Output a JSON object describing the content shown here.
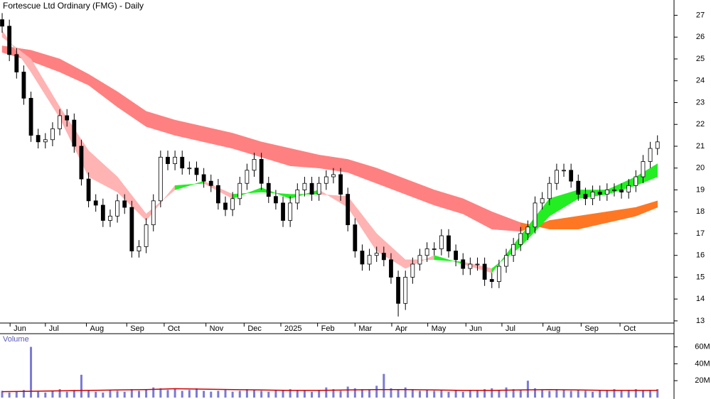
{
  "chart_data": {
    "type": "candlestick",
    "title": "Fortescue Ltd Ordinary (FMG) - Daily",
    "x": [
      0,
      1,
      2,
      3,
      4,
      5,
      6,
      7,
      8,
      9,
      10,
      11,
      12,
      13,
      14,
      15,
      16,
      17,
      18,
      19,
      20,
      21,
      22,
      23,
      24,
      25,
      26,
      27,
      28,
      29,
      30,
      31,
      32,
      33,
      34,
      35,
      36,
      37,
      38,
      39,
      40,
      41,
      42,
      43,
      44,
      45,
      46,
      47,
      48,
      49,
      50,
      51,
      52,
      53,
      54,
      55,
      56,
      57,
      58,
      59,
      60,
      61,
      62,
      63,
      64,
      65,
      66,
      67,
      68,
      69,
      70,
      71,
      72,
      73,
      74,
      75,
      76,
      77,
      78,
      79,
      80,
      81,
      82,
      83,
      84,
      85,
      86,
      87,
      88,
      89,
      90,
      91
    ],
    "open": [
      26.8,
      26.5,
      25.2,
      24.4,
      23.2,
      21.5,
      21.2,
      21.3,
      21.8,
      22.4,
      22.2,
      21.0,
      19.5,
      18.5,
      18.3,
      17.6,
      17.8,
      18.5,
      18.2,
      16.2,
      16.4,
      17.4,
      18.5,
      20.5,
      20.2,
      20.5,
      20.0,
      20.0,
      19.7,
      19.4,
      19.2,
      18.4,
      18.1,
      18.6,
      19.3,
      19.9,
      20.4,
      19.3,
      18.7,
      18.4,
      17.6,
      18.4,
      19.0,
      19.3,
      18.8,
      19.3,
      19.6,
      19.7,
      18.8,
      17.4,
      16.2,
      15.6,
      16.0,
      16.1,
      15.8,
      15.0,
      13.8,
      15.0,
      15.6,
      16.0,
      16.3,
      16.3,
      16.9,
      16.2,
      15.8,
      15.4,
      15.6,
      15.6,
      14.9,
      14.8,
      15.5,
      16.0,
      16.5,
      17.0,
      17.3,
      18.4,
      18.6,
      19.3,
      19.9,
      19.9,
      19.4,
      18.8,
      18.6,
      18.9,
      18.8,
      19.0,
      19.0,
      18.9,
      19.2,
      19.6,
      20.3,
      20.9
    ],
    "high": [
      27.1,
      26.8,
      25.5,
      24.7,
      23.5,
      21.8,
      21.6,
      22.1,
      22.7,
      22.7,
      22.5,
      21.3,
      19.8,
      18.8,
      18.6,
      18.1,
      18.8,
      18.8,
      18.5,
      16.7,
      17.7,
      18.8,
      20.8,
      20.8,
      20.8,
      20.8,
      20.3,
      20.3,
      20.0,
      19.7,
      19.5,
      18.7,
      18.9,
      19.6,
      20.2,
      20.7,
      20.7,
      19.6,
      19.0,
      18.7,
      18.7,
      19.3,
      19.6,
      19.6,
      19.6,
      19.9,
      20.0,
      20.0,
      19.1,
      17.7,
      16.5,
      16.3,
      16.4,
      16.4,
      16.1,
      15.3,
      15.3,
      15.9,
      16.3,
      16.6,
      16.6,
      17.2,
      17.2,
      16.5,
      16.1,
      15.9,
      15.9,
      15.9,
      15.2,
      15.8,
      16.3,
      16.8,
      17.3,
      17.6,
      18.7,
      18.9,
      19.6,
      20.2,
      20.2,
      20.2,
      19.7,
      19.1,
      19.2,
      19.2,
      19.3,
      19.3,
      19.3,
      19.5,
      19.9,
      20.6,
      21.2,
      21.5
    ],
    "low": [
      26.2,
      24.9,
      24.1,
      22.9,
      21.2,
      20.9,
      20.9,
      21.0,
      21.5,
      21.9,
      20.7,
      19.2,
      18.2,
      18.0,
      17.3,
      17.3,
      17.5,
      17.9,
      15.9,
      15.9,
      16.1,
      17.1,
      18.2,
      19.9,
      19.9,
      19.7,
      19.7,
      19.4,
      19.1,
      18.9,
      18.1,
      17.8,
      17.8,
      18.3,
      19.0,
      19.6,
      19.0,
      18.4,
      18.1,
      17.3,
      17.3,
      18.1,
      18.7,
      18.5,
      18.5,
      19.0,
      19.3,
      18.5,
      17.1,
      15.9,
      15.3,
      15.3,
      15.7,
      15.5,
      14.7,
      13.2,
      13.5,
      14.7,
      15.3,
      15.7,
      16.0,
      16.0,
      15.9,
      15.5,
      15.1,
      15.1,
      15.3,
      14.6,
      14.5,
      14.5,
      15.2,
      15.7,
      16.2,
      16.7,
      17.0,
      18.1,
      18.3,
      19.0,
      19.6,
      19.1,
      18.5,
      18.3,
      18.3,
      18.5,
      18.5,
      18.7,
      18.6,
      18.6,
      18.9,
      19.3,
      20.0,
      20.6
    ],
    "close": [
      26.5,
      25.2,
      24.4,
      23.2,
      21.5,
      21.2,
      21.3,
      21.8,
      22.4,
      22.2,
      21.0,
      19.5,
      18.5,
      18.3,
      17.6,
      17.8,
      18.5,
      18.2,
      16.2,
      16.4,
      17.4,
      18.5,
      20.5,
      20.2,
      20.5,
      20.0,
      20.0,
      19.7,
      19.4,
      19.2,
      18.4,
      18.1,
      18.6,
      19.3,
      19.9,
      20.4,
      19.3,
      18.7,
      18.4,
      17.6,
      18.4,
      19.0,
      19.3,
      18.8,
      19.3,
      19.6,
      19.7,
      18.8,
      17.4,
      16.2,
      15.6,
      16.0,
      16.1,
      15.8,
      15.0,
      13.8,
      15.0,
      15.6,
      16.0,
      16.3,
      16.3,
      16.9,
      16.2,
      15.8,
      15.4,
      15.6,
      15.6,
      14.9,
      14.8,
      15.5,
      16.0,
      16.5,
      17.0,
      17.3,
      18.4,
      18.6,
      19.3,
      19.9,
      19.9,
      19.4,
      18.8,
      18.6,
      18.9,
      18.8,
      19.0,
      19.0,
      18.9,
      19.2,
      19.6,
      20.3,
      20.9,
      21.2
    ],
    "up_color": "#ffffff",
    "down_color": "#000000",
    "xlim": [
      -0.3,
      93.3
    ],
    "ylim": [
      12.9,
      27.7
    ],
    "yticks": [
      13,
      14,
      15,
      16,
      17,
      18,
      19,
      20,
      21,
      22,
      23,
      24,
      25,
      26,
      27
    ],
    "xticks": [
      {
        "value": 1.1,
        "label": "Jun"
      },
      {
        "value": 6.0,
        "label": "Jul"
      },
      {
        "value": 11.7,
        "label": "Aug"
      },
      {
        "value": 17.3,
        "label": "Sep"
      },
      {
        "value": 22.5,
        "label": "Oct"
      },
      {
        "value": 28.3,
        "label": "Nov"
      },
      {
        "value": 33.6,
        "label": "Dec"
      },
      {
        "value": 38.7,
        "label": "2025"
      },
      {
        "value": 43.8,
        "label": "Feb"
      },
      {
        "value": 49.0,
        "label": "Mar"
      },
      {
        "value": 54.1,
        "label": "Apr"
      },
      {
        "value": 59.1,
        "label": "May"
      },
      {
        "value": 64.4,
        "label": "Jun"
      },
      {
        "value": 69.4,
        "label": "Jul"
      },
      {
        "value": 75.1,
        "label": "Aug"
      },
      {
        "value": 80.4,
        "label": "Sep"
      },
      {
        "value": 85.8,
        "label": "Oct"
      }
    ],
    "bands": [
      {
        "x": [
          0,
          4,
          8,
          12,
          16,
          20,
          24,
          28,
          32,
          36,
          40,
          44,
          48,
          52,
          56,
          60,
          64,
          68,
          72,
          76,
          80,
          84,
          88,
          91
        ],
        "fast": [
          25.3,
          24.9,
          24.4,
          23.8,
          22.8,
          21.9,
          21.5,
          21.2,
          20.9,
          20.5,
          20.1,
          20.0,
          19.8,
          19.3,
          18.8,
          18.3,
          17.9,
          17.2,
          17.1,
          17.6,
          17.8,
          18.0,
          18.2,
          18.5
        ],
        "slow": [
          25.6,
          25.4,
          25.0,
          24.3,
          23.5,
          22.6,
          22.2,
          21.9,
          21.6,
          21.2,
          20.9,
          20.6,
          20.4,
          20.0,
          19.5,
          19.0,
          18.6,
          18.0,
          17.5,
          17.2,
          17.2,
          17.5,
          17.8,
          18.2
        ],
        "up_color": "#ff7722",
        "down_color": "#ff8080"
      },
      {
        "x": [
          0,
          4,
          8,
          12,
          16,
          20,
          24,
          28,
          32,
          36,
          40,
          44,
          48,
          52,
          56,
          60,
          64,
          68,
          72,
          76,
          80,
          84,
          88,
          91
        ],
        "fast": [
          26.3,
          24.4,
          22.3,
          19.6,
          18.9,
          17.6,
          19.2,
          19.3,
          18.6,
          19.1,
          18.6,
          19.0,
          18.2,
          16.2,
          15.4,
          16.0,
          15.6,
          15.2,
          16.9,
          18.6,
          19.0,
          19.0,
          19.6,
          20.2
        ],
        "slow": [
          26.0,
          25.0,
          22.8,
          20.8,
          19.6,
          17.9,
          19.0,
          19.4,
          18.8,
          18.9,
          18.8,
          18.8,
          18.7,
          17.0,
          15.8,
          15.8,
          15.7,
          15.4,
          16.4,
          17.8,
          18.6,
          18.8,
          19.2,
          19.6
        ],
        "up_color": "#22ee22",
        "down_color": "#ffb3b3"
      }
    ],
    "volume": {
      "label": "Volume",
      "values": [
        8,
        6,
        7,
        9,
        60,
        7,
        6,
        8,
        10,
        7,
        9,
        27,
        8,
        7,
        6,
        9,
        8,
        7,
        10,
        8,
        9,
        12,
        11,
        9,
        10,
        8,
        9,
        11,
        8,
        7,
        8,
        9,
        7,
        8,
        10,
        9,
        8,
        7,
        9,
        8,
        10,
        9,
        8,
        7,
        9,
        12,
        10,
        8,
        13,
        11,
        10,
        9,
        14,
        28,
        11,
        9,
        12,
        10,
        8,
        9,
        8,
        9,
        7,
        8,
        7,
        9,
        8,
        10,
        11,
        9,
        12,
        10,
        9,
        20,
        11,
        9,
        8,
        10,
        9,
        8,
        9,
        8,
        7,
        9,
        8,
        10,
        8,
        9,
        10,
        8,
        9,
        10
      ],
      "color": "#7a7ad6",
      "ma": {
        "x": [
          0,
          4,
          8,
          12,
          16,
          20,
          24,
          28,
          32,
          36,
          40,
          44,
          48,
          52,
          56,
          60,
          64,
          68,
          72,
          76,
          80,
          84,
          88,
          91
        ],
        "values": [
          7,
          7.5,
          8,
          8.5,
          9,
          9.5,
          10.5,
          10,
          9.5,
          9,
          8.5,
          8.5,
          9,
          9.5,
          9.5,
          9,
          8.5,
          8.5,
          9,
          9.5,
          9,
          8.5,
          8.5,
          8.5
        ],
        "color": "#cc0000"
      },
      "ylim": [
        0,
        75.6
      ],
      "yticks": [
        {
          "value": 20,
          "label": "20M"
        },
        {
          "value": 40,
          "label": "40M"
        },
        {
          "value": 60,
          "label": "60M"
        }
      ]
    }
  }
}
